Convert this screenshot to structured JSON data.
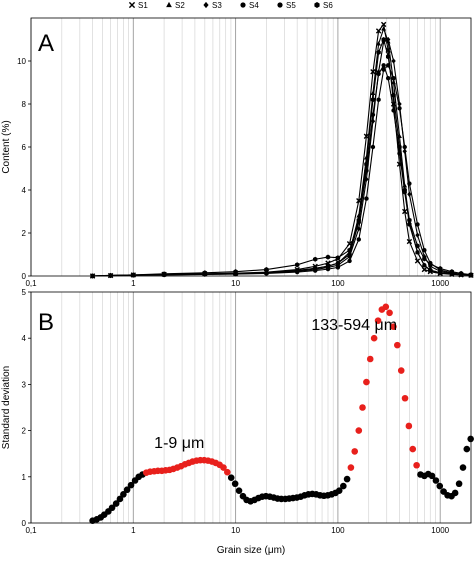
{
  "chart_data": [
    {
      "type": "line",
      "panel_label": "A",
      "ylabel": "Content (%)",
      "xscale": "log",
      "xlim": [
        0.1,
        2000
      ],
      "ylim": [
        0,
        12
      ],
      "x_ticks": [
        "0,1",
        "1",
        "10",
        "100",
        "1000"
      ],
      "y_ticks": [
        "0",
        "2",
        "4",
        "6",
        "8",
        "10"
      ],
      "grid": "vertical log gridlines",
      "legend": {
        "position": "top",
        "entries": [
          {
            "name": "S1",
            "marker": "cross"
          },
          {
            "name": "S2",
            "marker": "triangle"
          },
          {
            "name": "S3",
            "marker": "diamond"
          },
          {
            "name": "S4",
            "marker": "circle"
          },
          {
            "name": "S5",
            "marker": "circle"
          },
          {
            "name": "S6",
            "marker": "hexagon"
          }
        ]
      },
      "x": [
        0.4,
        0.6,
        1,
        2,
        5,
        10,
        20,
        40,
        60,
        80,
        100,
        130,
        160,
        190,
        220,
        250,
        280,
        310,
        350,
        400,
        450,
        500,
        600,
        700,
        800,
        1000,
        1300,
        1600,
        2000
      ],
      "series": [
        {
          "name": "S1",
          "values": [
            0.0,
            0.02,
            0.05,
            0.08,
            0.1,
            0.13,
            0.18,
            0.3,
            0.45,
            0.6,
            0.8,
            1.5,
            3.5,
            6.5,
            9.5,
            11.4,
            11.7,
            10.5,
            8.0,
            5.2,
            3.0,
            1.6,
            0.7,
            0.3,
            0.2,
            0.12,
            0.08,
            0.05,
            0.03
          ]
        },
        {
          "name": "S2",
          "values": [
            0.0,
            0.02,
            0.04,
            0.07,
            0.09,
            0.12,
            0.16,
            0.25,
            0.35,
            0.45,
            0.6,
            1.1,
            2.8,
            5.5,
            8.5,
            10.8,
            11.5,
            10.9,
            9.0,
            6.5,
            4.2,
            2.5,
            1.1,
            0.5,
            0.25,
            0.15,
            0.1,
            0.06,
            0.03
          ]
        },
        {
          "name": "S3",
          "values": [
            0.0,
            0.02,
            0.04,
            0.06,
            0.08,
            0.1,
            0.14,
            0.22,
            0.3,
            0.4,
            0.5,
            0.9,
            2.2,
            4.5,
            7.2,
            9.5,
            10.9,
            11.0,
            10.0,
            8.0,
            5.8,
            3.8,
            1.9,
            0.9,
            0.45,
            0.22,
            0.12,
            0.07,
            0.04
          ]
        },
        {
          "name": "S4",
          "values": [
            0.0,
            0.02,
            0.03,
            0.05,
            0.07,
            0.09,
            0.12,
            0.18,
            0.25,
            0.32,
            0.4,
            0.7,
            1.7,
            3.6,
            6.0,
            8.2,
            9.6,
            9.8,
            9.2,
            7.8,
            6.0,
            4.3,
            2.4,
            1.2,
            0.6,
            0.28,
            0.15,
            0.08,
            0.04
          ]
        },
        {
          "name": "S5",
          "values": [
            0.0,
            0.02,
            0.04,
            0.07,
            0.09,
            0.12,
            0.16,
            0.26,
            0.36,
            0.46,
            0.6,
            1.0,
            2.5,
            4.9,
            7.5,
            9.4,
            9.8,
            9.2,
            7.7,
            5.7,
            3.9,
            2.4,
            1.1,
            0.5,
            0.28,
            0.15,
            0.1,
            0.06,
            0.03
          ]
        },
        {
          "name": "S6",
          "values": [
            0.0,
            0.03,
            0.05,
            0.1,
            0.15,
            0.2,
            0.3,
            0.52,
            0.78,
            0.88,
            0.85,
            1.2,
            2.6,
            5.2,
            8.2,
            10.4,
            11.0,
            10.2,
            8.4,
            6.0,
            4.0,
            2.6,
            1.4,
            0.8,
            0.55,
            0.35,
            0.2,
            0.12,
            0.06
          ]
        }
      ]
    },
    {
      "type": "scatter",
      "panel_label": "B",
      "xlabel": "Grain size (μm)",
      "ylabel": "Standard deviation",
      "xscale": "log",
      "xlim": [
        0.1,
        2000
      ],
      "ylim": [
        0,
        5
      ],
      "x_ticks": [
        "0,1",
        "1",
        "10",
        "100",
        "1000"
      ],
      "y_ticks": [
        "0",
        "1",
        "2",
        "3",
        "4",
        "5"
      ],
      "annotations": [
        {
          "text": "1-9 μm",
          "near_x": 3
        },
        {
          "text": "133-594 μm",
          "near_x": 280
        }
      ],
      "colors": {
        "normal": "#000000",
        "highlighted": "#e8201c"
      },
      "points": [
        {
          "x": 0.4,
          "y": 0.05
        },
        {
          "x": 0.44,
          "y": 0.08
        },
        {
          "x": 0.48,
          "y": 0.12
        },
        {
          "x": 0.52,
          "y": 0.18
        },
        {
          "x": 0.57,
          "y": 0.25
        },
        {
          "x": 0.62,
          "y": 0.33
        },
        {
          "x": 0.68,
          "y": 0.42
        },
        {
          "x": 0.74,
          "y": 0.52
        },
        {
          "x": 0.8,
          "y": 0.62
        },
        {
          "x": 0.87,
          "y": 0.72
        },
        {
          "x": 0.95,
          "y": 0.82
        },
        {
          "x": 1.04,
          "y": 0.92
        },
        {
          "x": 1.13,
          "y": 1.0
        },
        {
          "x": 1.23,
          "y": 1.05
        },
        {
          "x": 1.34,
          "y": 1.09,
          "highlight": true
        },
        {
          "x": 1.46,
          "y": 1.11,
          "highlight": true
        },
        {
          "x": 1.6,
          "y": 1.12,
          "highlight": true
        },
        {
          "x": 1.74,
          "y": 1.13,
          "highlight": true
        },
        {
          "x": 1.9,
          "y": 1.13,
          "highlight": true
        },
        {
          "x": 2.07,
          "y": 1.14,
          "highlight": true
        },
        {
          "x": 2.26,
          "y": 1.15,
          "highlight": true
        },
        {
          "x": 2.46,
          "y": 1.17,
          "highlight": true
        },
        {
          "x": 2.69,
          "y": 1.2,
          "highlight": true
        },
        {
          "x": 2.93,
          "y": 1.23,
          "highlight": true
        },
        {
          "x": 3.2,
          "y": 1.27,
          "highlight": true
        },
        {
          "x": 3.49,
          "y": 1.3,
          "highlight": true
        },
        {
          "x": 3.8,
          "y": 1.33,
          "highlight": true
        },
        {
          "x": 4.15,
          "y": 1.35,
          "highlight": true
        },
        {
          "x": 4.52,
          "y": 1.36,
          "highlight": true
        },
        {
          "x": 4.93,
          "y": 1.36,
          "highlight": true
        },
        {
          "x": 5.38,
          "y": 1.35,
          "highlight": true
        },
        {
          "x": 5.87,
          "y": 1.33,
          "highlight": true
        },
        {
          "x": 6.4,
          "y": 1.3,
          "highlight": true
        },
        {
          "x": 6.98,
          "y": 1.26,
          "highlight": true
        },
        {
          "x": 7.61,
          "y": 1.2,
          "highlight": true
        },
        {
          "x": 8.3,
          "y": 1.1,
          "highlight": true
        },
        {
          "x": 9.06,
          "y": 0.98
        },
        {
          "x": 9.9,
          "y": 0.85
        },
        {
          "x": 10.8,
          "y": 0.7
        },
        {
          "x": 11.8,
          "y": 0.58
        },
        {
          "x": 12.8,
          "y": 0.5
        },
        {
          "x": 14.0,
          "y": 0.47
        },
        {
          "x": 15.3,
          "y": 0.5
        },
        {
          "x": 16.7,
          "y": 0.54
        },
        {
          "x": 18.2,
          "y": 0.57
        },
        {
          "x": 19.8,
          "y": 0.58
        },
        {
          "x": 21.6,
          "y": 0.57
        },
        {
          "x": 23.6,
          "y": 0.55
        },
        {
          "x": 25.7,
          "y": 0.53
        },
        {
          "x": 28.0,
          "y": 0.52
        },
        {
          "x": 30.6,
          "y": 0.52
        },
        {
          "x": 33.4,
          "y": 0.53
        },
        {
          "x": 36.4,
          "y": 0.54
        },
        {
          "x": 39.7,
          "y": 0.55
        },
        {
          "x": 43.3,
          "y": 0.57
        },
        {
          "x": 47.2,
          "y": 0.6
        },
        {
          "x": 51.5,
          "y": 0.62
        },
        {
          "x": 56.2,
          "y": 0.63
        },
        {
          "x": 61.3,
          "y": 0.62
        },
        {
          "x": 66.9,
          "y": 0.6
        },
        {
          "x": 73.0,
          "y": 0.59
        },
        {
          "x": 79.6,
          "y": 0.6
        },
        {
          "x": 86.8,
          "y": 0.62
        },
        {
          "x": 94.7,
          "y": 0.65
        },
        {
          "x": 103,
          "y": 0.7
        },
        {
          "x": 113,
          "y": 0.8
        },
        {
          "x": 123,
          "y": 0.95
        },
        {
          "x": 134,
          "y": 1.2,
          "highlight": true
        },
        {
          "x": 146,
          "y": 1.55,
          "highlight": true
        },
        {
          "x": 160,
          "y": 2.0,
          "highlight": true
        },
        {
          "x": 174,
          "y": 2.5,
          "highlight": true
        },
        {
          "x": 190,
          "y": 3.05,
          "highlight": true
        },
        {
          "x": 207,
          "y": 3.55,
          "highlight": true
        },
        {
          "x": 226,
          "y": 4.0,
          "highlight": true
        },
        {
          "x": 247,
          "y": 4.38,
          "highlight": true
        },
        {
          "x": 269,
          "y": 4.62,
          "highlight": true
        },
        {
          "x": 294,
          "y": 4.68,
          "highlight": true
        },
        {
          "x": 320,
          "y": 4.55,
          "highlight": true
        },
        {
          "x": 349,
          "y": 4.25,
          "highlight": true
        },
        {
          "x": 381,
          "y": 3.85,
          "highlight": true
        },
        {
          "x": 416,
          "y": 3.3,
          "highlight": true
        },
        {
          "x": 453,
          "y": 2.7,
          "highlight": true
        },
        {
          "x": 494,
          "y": 2.1,
          "highlight": true
        },
        {
          "x": 539,
          "y": 1.6,
          "highlight": true
        },
        {
          "x": 588,
          "y": 1.25,
          "highlight": true
        },
        {
          "x": 641,
          "y": 1.05
        },
        {
          "x": 700,
          "y": 1.02
        },
        {
          "x": 763,
          "y": 1.06
        },
        {
          "x": 832,
          "y": 1.02
        },
        {
          "x": 908,
          "y": 0.92
        },
        {
          "x": 990,
          "y": 0.8
        },
        {
          "x": 1080,
          "y": 0.68
        },
        {
          "x": 1180,
          "y": 0.6
        },
        {
          "x": 1290,
          "y": 0.58
        },
        {
          "x": 1400,
          "y": 0.65
        },
        {
          "x": 1530,
          "y": 0.85
        },
        {
          "x": 1670,
          "y": 1.2
        },
        {
          "x": 1820,
          "y": 1.6
        },
        {
          "x": 1985,
          "y": 1.82
        }
      ]
    }
  ]
}
